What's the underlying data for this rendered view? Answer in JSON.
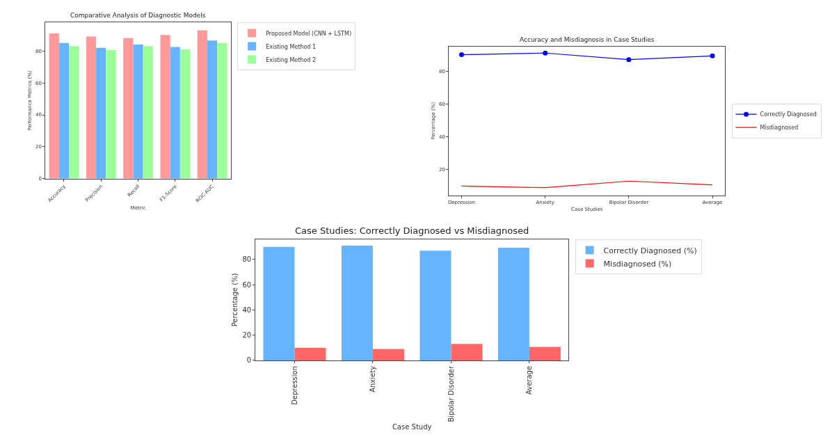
{
  "chart_data": [
    {
      "type": "bar",
      "title": "Comparative Analysis of Diagnostic Models",
      "xlabel": "Metric",
      "ylabel": "Performance Metrics (%)",
      "categories": [
        "Accuracy",
        "Precision",
        "Recall",
        "F1-Score",
        "ROC-AUC"
      ],
      "series": [
        {
          "name": "Proposed Model (CNN + LSTM)",
          "color": "#ff9999",
          "values": [
            91,
            89,
            88,
            90,
            93
          ]
        },
        {
          "name": "Existing Method 1",
          "color": "#66b3ff",
          "values": [
            85,
            82,
            84,
            82.5,
            86.5
          ]
        },
        {
          "name": "Existing Method 2",
          "color": "#99ff99",
          "values": [
            83,
            80.5,
            83,
            81,
            85
          ]
        }
      ],
      "ylim": [
        0,
        98
      ],
      "yticks": [
        0,
        20,
        40,
        60,
        80
      ],
      "legend": "top right"
    },
    {
      "type": "line",
      "title": "Accuracy and Misdiagnosis in Case Studies",
      "xlabel": "Case Studies",
      "ylabel": "Percentage (%)",
      "categories": [
        "Depression",
        "Anxiety",
        "Bipolar Disorder",
        "Average"
      ],
      "series": [
        {
          "name": "Correctly Diagnosed",
          "color": "#0000ff",
          "marker": "circle",
          "values": [
            90,
            91,
            87,
            89.3
          ]
        },
        {
          "name": "Misdiagnosed",
          "color": "#ff0000",
          "marker": "none",
          "values": [
            10,
            9,
            13,
            10.7
          ]
        }
      ],
      "ylim": [
        4.4,
        95
      ],
      "yticks": [
        20,
        40,
        60,
        80
      ],
      "legend": "right"
    },
    {
      "type": "bar",
      "title": "Case Studies: Correctly Diagnosed vs Misdiagnosed",
      "xlabel": "Case Study",
      "ylabel": "Percentage (%)",
      "categories": [
        "Depression",
        "Anxiety",
        "Bipolar Disorder",
        "Average"
      ],
      "series": [
        {
          "name": "Correctly Diagnosed (%)",
          "color": "#66b3ff",
          "values": [
            90,
            91,
            87,
            89.3
          ]
        },
        {
          "name": "Misdiagnosed (%)",
          "color": "#ff6666",
          "values": [
            10,
            9,
            13,
            10.7
          ]
        }
      ],
      "ylim": [
        0,
        96
      ],
      "yticks": [
        0,
        20,
        40,
        60,
        80
      ],
      "legend": "top right"
    }
  ]
}
